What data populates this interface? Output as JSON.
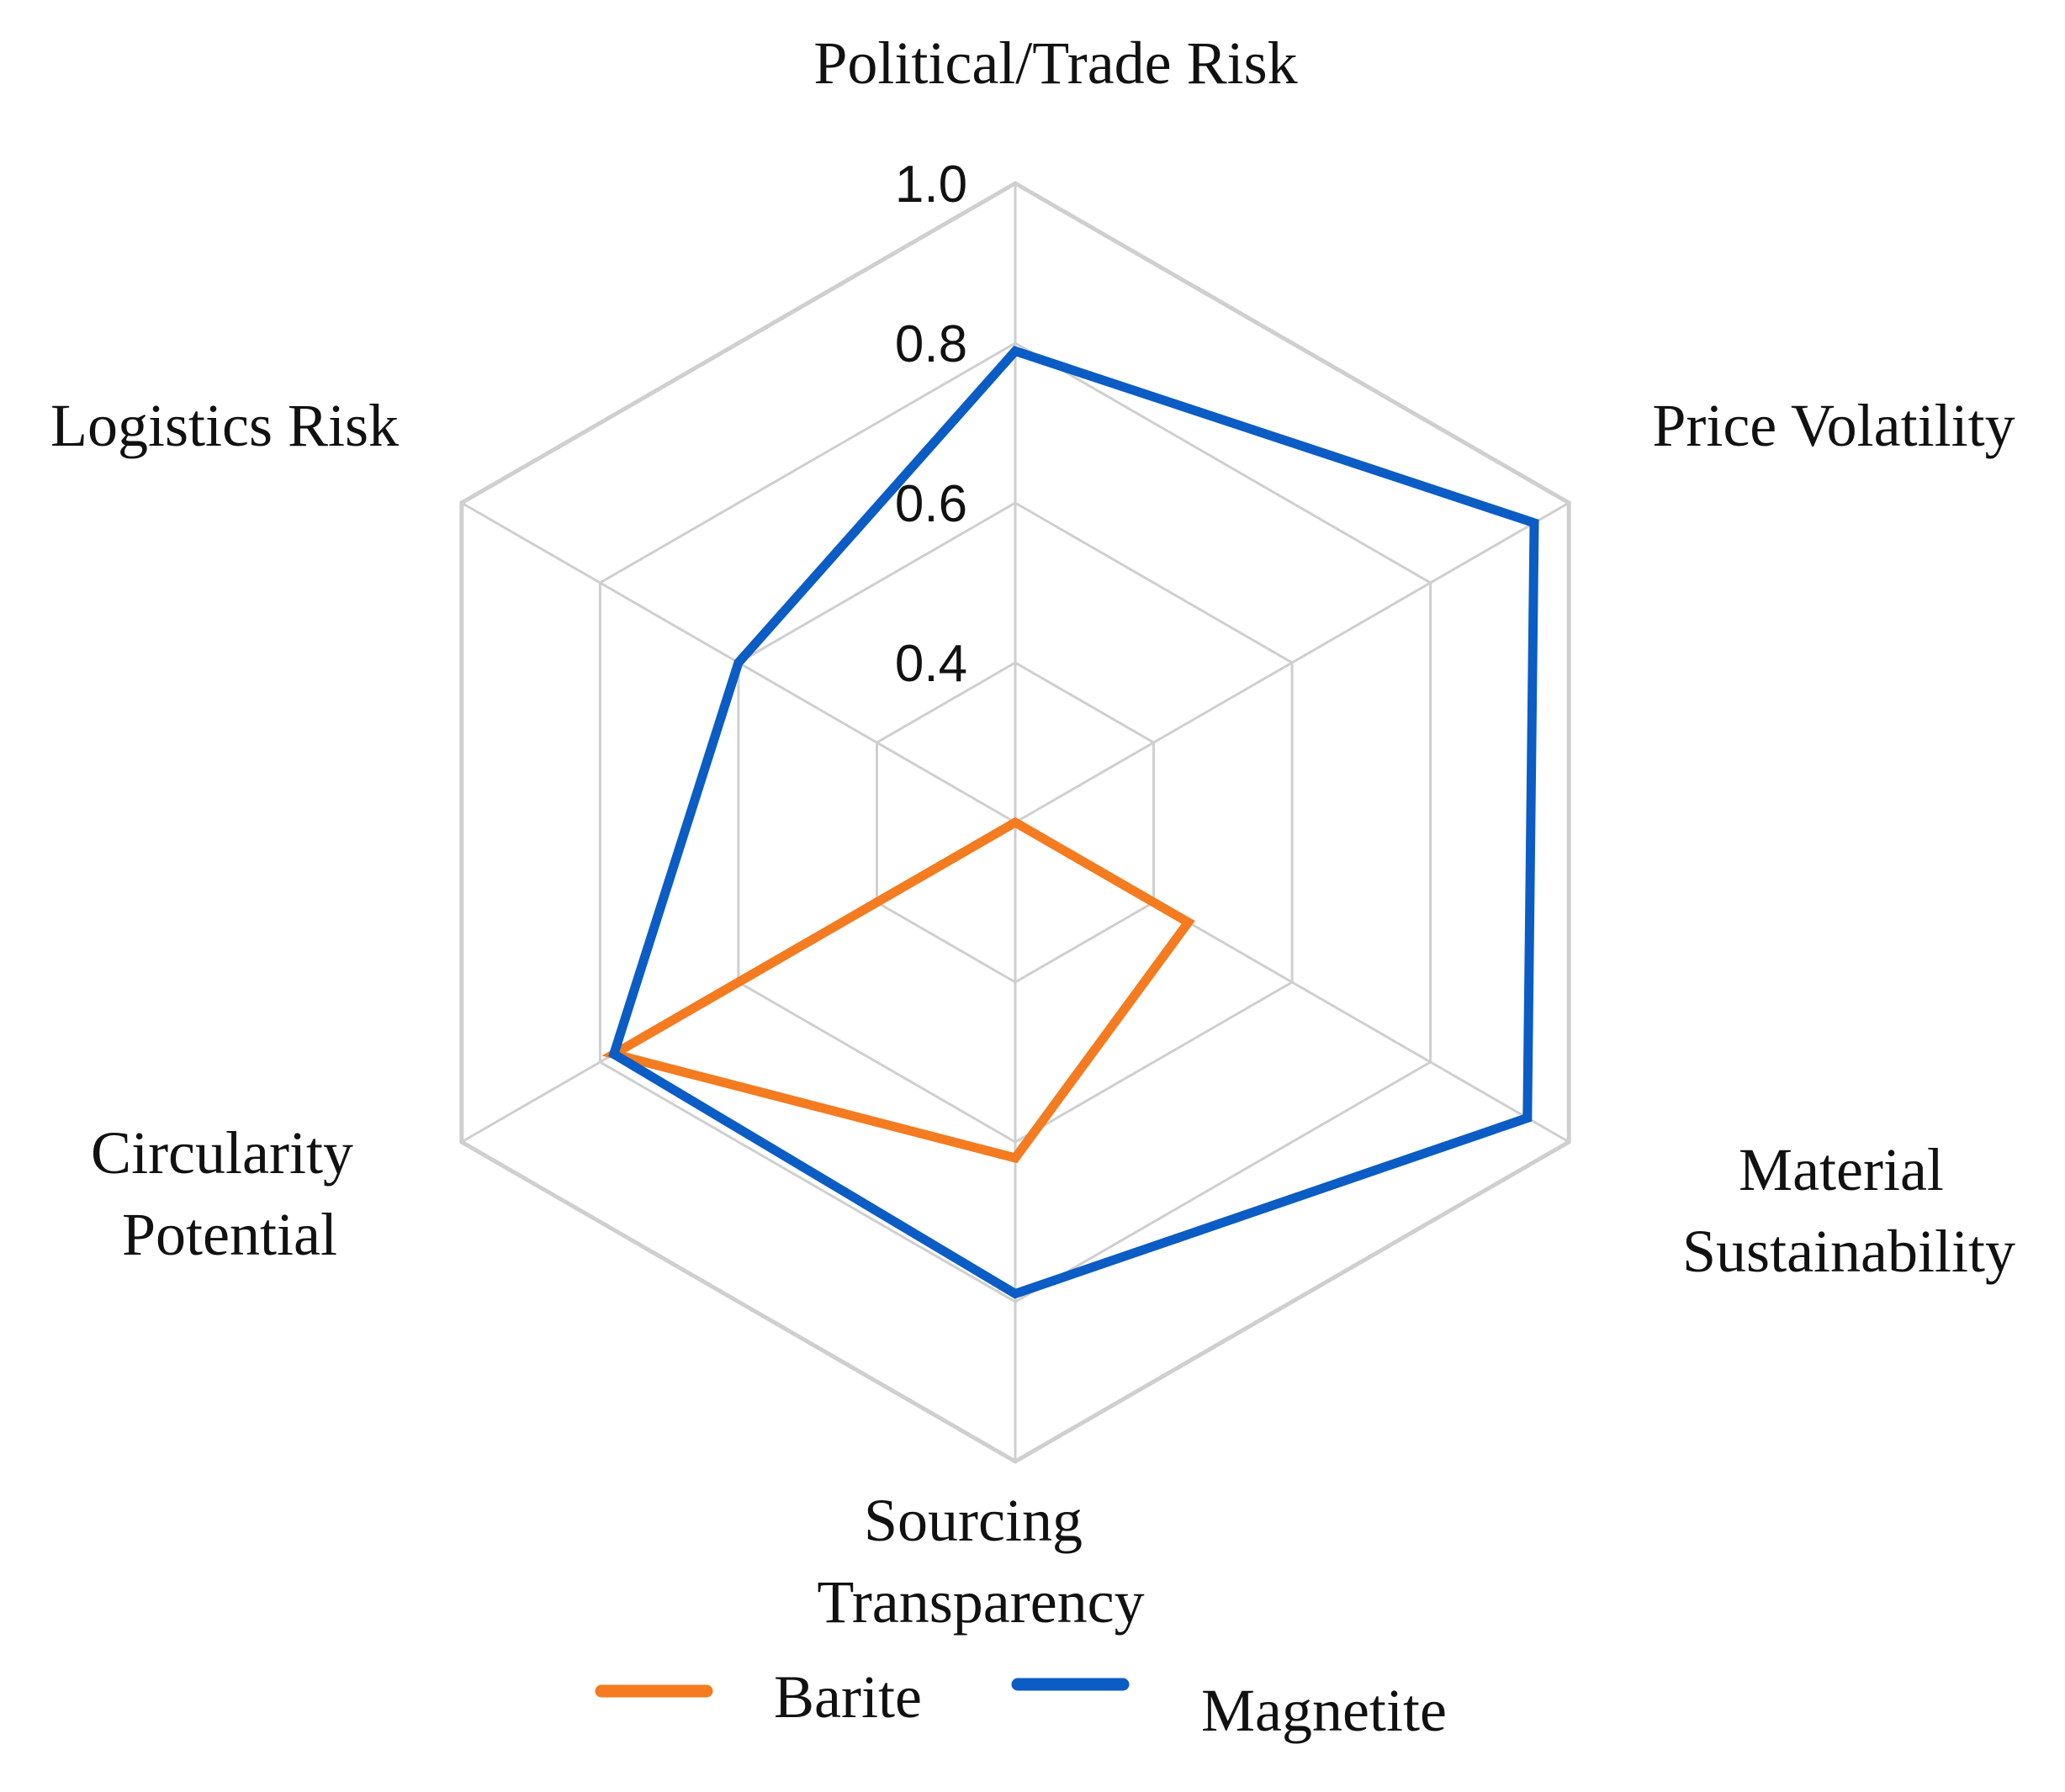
{
  "chart_data": {
    "type": "radar",
    "axes": [
      [
        "Political/Trade Risk"
      ],
      [
        "Price Volatility"
      ],
      [
        "Material",
        "Sustainability"
      ],
      [
        "Sourcing",
        "Transparency"
      ],
      [
        "Circularity",
        "Potential"
      ],
      [
        "Logistics Risk"
      ]
    ],
    "rlim": [
      0.2,
      1.0
    ],
    "ticks": [
      "0.4",
      "0.6",
      "0.8",
      "1.0"
    ],
    "tick_values": [
      0.4,
      0.6,
      0.8,
      1.0
    ],
    "grid_values": [
      0.2,
      0.4,
      0.6,
      0.8,
      1.0
    ],
    "series": [
      {
        "name": "Barite",
        "color": "#F47B20",
        "values": [
          0.2,
          0.2,
          0.45,
          0.62,
          0.78,
          0.2
        ]
      },
      {
        "name": "Magnetite",
        "color": "#0B5CC4",
        "values": [
          0.79,
          0.95,
          0.94,
          0.79,
          0.78,
          0.6
        ]
      }
    ],
    "grid": true,
    "legend": "bottom"
  }
}
